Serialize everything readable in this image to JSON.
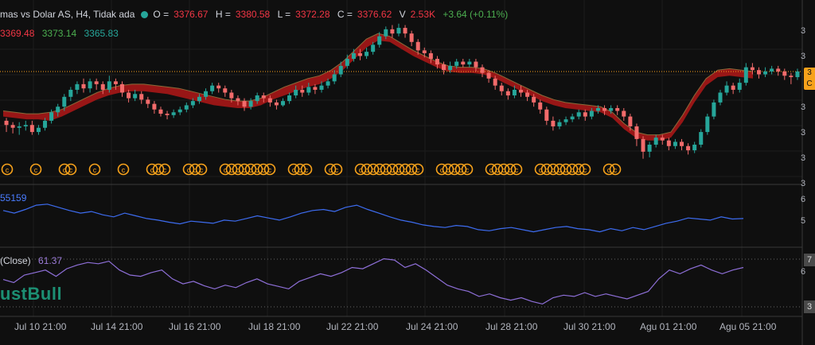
{
  "header": {
    "symbol": "mas vs Dolar AS, H4, Tidak ada",
    "open_label": "O =",
    "open": "3376.67",
    "high_label": "H =",
    "high": "3380.58",
    "low_label": "L =",
    "low": "3372.28",
    "close_label": "C =",
    "close": "3376.62",
    "vol_label": "V",
    "volume": "2.53K",
    "change": "+3.64 (+0.11%)"
  },
  "indicator1": {
    "v1": "3369.48",
    "v2": "3373.14",
    "v3": "3365.83"
  },
  "volume_pane": {
    "label": "55159"
  },
  "rsi_pane": {
    "label": "(Close)",
    "value": "61.37"
  },
  "watermark": "ustBull",
  "right_axis": {
    "main": [
      "3",
      "3",
      "3",
      "3",
      "3",
      "3"
    ],
    "badge_lines": [
      "3",
      "C"
    ],
    "vol": [
      "6",
      "5"
    ],
    "rsi": [
      "7",
      "6",
      "3"
    ]
  },
  "x_labels": [
    "Jul 10 21:00",
    "Jul 14 21:00",
    "Jul 16 21:00",
    "Jul 18 21:00",
    "Jul 22 21:00",
    "Jul 24 21:00",
    "Jul 28 21:00",
    "Jul 30 21:00",
    "Agu 01 21:00",
    "Agu 05 21:00"
  ],
  "colors": {
    "up": "#26a69a",
    "down": "#f26b6b",
    "band": "#b01818",
    "vol_line": "#3d6cf0",
    "rsi_line": "#8e6fd8",
    "marker": "#f7a21b",
    "price_line": "#f7a21b"
  },
  "chart_data": {
    "type": "candlestick",
    "x": [
      "Jul 10 21:00",
      "Jul 14 21:00",
      "Jul 16 21:00",
      "Jul 18 21:00",
      "Jul 22 21:00",
      "Jul 24 21:00",
      "Jul 28 21:00",
      "Jul 30 21:00",
      "Agu 01 21:00",
      "Agu 05 21:00"
    ],
    "last_close": 3376.62,
    "candles": [
      [
        0.3,
        0.27,
        0.22,
        0.32
      ],
      [
        0.27,
        0.25,
        0.21,
        0.29
      ],
      [
        0.25,
        0.26,
        0.2,
        0.29
      ],
      [
        0.26,
        0.27,
        0.23,
        0.3
      ],
      [
        0.27,
        0.22,
        0.2,
        0.3
      ],
      [
        0.22,
        0.25,
        0.2,
        0.27
      ],
      [
        0.25,
        0.3,
        0.23,
        0.32
      ],
      [
        0.3,
        0.36,
        0.28,
        0.38
      ],
      [
        0.36,
        0.4,
        0.33,
        0.42
      ],
      [
        0.4,
        0.47,
        0.37,
        0.49
      ],
      [
        0.47,
        0.52,
        0.44,
        0.54
      ],
      [
        0.52,
        0.56,
        0.49,
        0.58
      ],
      [
        0.56,
        0.53,
        0.5,
        0.6
      ],
      [
        0.53,
        0.58,
        0.5,
        0.6
      ],
      [
        0.58,
        0.56,
        0.52,
        0.6
      ],
      [
        0.56,
        0.52,
        0.49,
        0.58
      ],
      [
        0.52,
        0.58,
        0.5,
        0.62
      ],
      [
        0.58,
        0.56,
        0.52,
        0.6
      ],
      [
        0.56,
        0.5,
        0.47,
        0.58
      ],
      [
        0.5,
        0.46,
        0.43,
        0.52
      ],
      [
        0.46,
        0.49,
        0.44,
        0.52
      ],
      [
        0.49,
        0.45,
        0.42,
        0.51
      ],
      [
        0.45,
        0.42,
        0.39,
        0.47
      ],
      [
        0.42,
        0.38,
        0.35,
        0.44
      ],
      [
        0.38,
        0.35,
        0.33,
        0.4
      ],
      [
        0.35,
        0.34,
        0.31,
        0.37
      ],
      [
        0.34,
        0.36,
        0.32,
        0.38
      ],
      [
        0.36,
        0.38,
        0.34,
        0.4
      ],
      [
        0.38,
        0.41,
        0.36,
        0.43
      ],
      [
        0.41,
        0.44,
        0.39,
        0.46
      ],
      [
        0.44,
        0.47,
        0.42,
        0.49
      ],
      [
        0.47,
        0.51,
        0.45,
        0.53
      ],
      [
        0.51,
        0.55,
        0.49,
        0.57
      ],
      [
        0.55,
        0.53,
        0.5,
        0.57
      ],
      [
        0.53,
        0.5,
        0.47,
        0.55
      ],
      [
        0.5,
        0.46,
        0.43,
        0.52
      ],
      [
        0.46,
        0.44,
        0.41,
        0.48
      ],
      [
        0.44,
        0.4,
        0.37,
        0.46
      ],
      [
        0.4,
        0.44,
        0.38,
        0.46
      ],
      [
        0.44,
        0.48,
        0.42,
        0.5
      ],
      [
        0.48,
        0.46,
        0.43,
        0.5
      ],
      [
        0.46,
        0.43,
        0.4,
        0.48
      ],
      [
        0.43,
        0.41,
        0.38,
        0.45
      ],
      [
        0.41,
        0.44,
        0.4,
        0.46
      ],
      [
        0.44,
        0.48,
        0.42,
        0.5
      ],
      [
        0.48,
        0.52,
        0.46,
        0.55
      ],
      [
        0.52,
        0.5,
        0.47,
        0.55
      ],
      [
        0.5,
        0.54,
        0.48,
        0.57
      ],
      [
        0.54,
        0.52,
        0.49,
        0.56
      ],
      [
        0.52,
        0.55,
        0.5,
        0.58
      ],
      [
        0.55,
        0.58,
        0.53,
        0.6
      ],
      [
        0.58,
        0.63,
        0.56,
        0.66
      ],
      [
        0.63,
        0.69,
        0.61,
        0.72
      ],
      [
        0.69,
        0.74,
        0.67,
        0.77
      ],
      [
        0.74,
        0.78,
        0.72,
        0.81
      ],
      [
        0.78,
        0.76,
        0.73,
        0.81
      ],
      [
        0.76,
        0.79,
        0.74,
        0.82
      ],
      [
        0.79,
        0.84,
        0.77,
        0.86
      ],
      [
        0.84,
        0.9,
        0.82,
        0.93
      ],
      [
        0.9,
        0.95,
        0.88,
        0.97
      ],
      [
        0.95,
        0.92,
        0.89,
        0.98
      ],
      [
        0.92,
        0.96,
        0.9,
        0.99
      ],
      [
        0.96,
        0.92,
        0.89,
        0.98
      ],
      [
        0.92,
        0.86,
        0.83,
        0.94
      ],
      [
        0.86,
        0.8,
        0.77,
        0.88
      ],
      [
        0.8,
        0.78,
        0.75,
        0.82
      ],
      [
        0.78,
        0.74,
        0.71,
        0.8
      ],
      [
        0.74,
        0.7,
        0.67,
        0.76
      ],
      [
        0.7,
        0.66,
        0.63,
        0.72
      ],
      [
        0.66,
        0.69,
        0.64,
        0.72
      ],
      [
        0.69,
        0.72,
        0.67,
        0.74
      ],
      [
        0.72,
        0.7,
        0.68,
        0.74
      ],
      [
        0.7,
        0.72,
        0.68,
        0.74
      ],
      [
        0.72,
        0.68,
        0.65,
        0.74
      ],
      [
        0.68,
        0.64,
        0.61,
        0.7
      ],
      [
        0.64,
        0.6,
        0.57,
        0.66
      ],
      [
        0.6,
        0.55,
        0.52,
        0.62
      ],
      [
        0.55,
        0.51,
        0.48,
        0.57
      ],
      [
        0.51,
        0.48,
        0.45,
        0.53
      ],
      [
        0.48,
        0.52,
        0.46,
        0.55
      ],
      [
        0.52,
        0.5,
        0.47,
        0.55
      ],
      [
        0.5,
        0.47,
        0.44,
        0.52
      ],
      [
        0.47,
        0.43,
        0.4,
        0.49
      ],
      [
        0.43,
        0.38,
        0.35,
        0.45
      ],
      [
        0.38,
        0.3,
        0.27,
        0.4
      ],
      [
        0.3,
        0.26,
        0.23,
        0.33
      ],
      [
        0.26,
        0.29,
        0.24,
        0.31
      ],
      [
        0.29,
        0.31,
        0.27,
        0.33
      ],
      [
        0.31,
        0.33,
        0.29,
        0.35
      ],
      [
        0.33,
        0.36,
        0.31,
        0.38
      ],
      [
        0.36,
        0.33,
        0.3,
        0.38
      ],
      [
        0.33,
        0.37,
        0.31,
        0.39
      ],
      [
        0.37,
        0.39,
        0.35,
        0.41
      ],
      [
        0.39,
        0.37,
        0.34,
        0.41
      ],
      [
        0.37,
        0.39,
        0.35,
        0.41
      ],
      [
        0.39,
        0.37,
        0.34,
        0.41
      ],
      [
        0.37,
        0.33,
        0.3,
        0.39
      ],
      [
        0.33,
        0.26,
        0.23,
        0.35
      ],
      [
        0.26,
        0.17,
        0.12,
        0.28
      ],
      [
        0.17,
        0.08,
        0.03,
        0.19
      ],
      [
        0.08,
        0.13,
        0.04,
        0.15
      ],
      [
        0.13,
        0.18,
        0.11,
        0.2
      ],
      [
        0.18,
        0.16,
        0.13,
        0.2
      ],
      [
        0.16,
        0.12,
        0.09,
        0.18
      ],
      [
        0.12,
        0.15,
        0.1,
        0.17
      ],
      [
        0.15,
        0.12,
        0.09,
        0.17
      ],
      [
        0.12,
        0.09,
        0.06,
        0.14
      ],
      [
        0.09,
        0.13,
        0.07,
        0.15
      ],
      [
        0.13,
        0.22,
        0.11,
        0.24
      ],
      [
        0.22,
        0.33,
        0.2,
        0.35
      ],
      [
        0.33,
        0.43,
        0.31,
        0.45
      ],
      [
        0.43,
        0.5,
        0.41,
        0.52
      ],
      [
        0.5,
        0.55,
        0.48,
        0.58
      ],
      [
        0.55,
        0.52,
        0.49,
        0.57
      ],
      [
        0.52,
        0.57,
        0.5,
        0.6
      ],
      [
        0.57,
        0.68,
        0.55,
        0.71
      ],
      [
        0.68,
        0.66,
        0.63,
        0.71
      ],
      [
        0.66,
        0.63,
        0.6,
        0.68
      ],
      [
        0.63,
        0.65,
        0.61,
        0.68
      ],
      [
        0.65,
        0.67,
        0.63,
        0.69
      ],
      [
        0.67,
        0.65,
        0.62,
        0.69
      ],
      [
        0.65,
        0.62,
        0.59,
        0.67
      ],
      [
        0.62,
        0.61,
        0.56,
        0.64
      ],
      [
        0.61,
        0.65,
        0.59,
        0.67
      ]
    ],
    "band_upper": [
      0.37,
      0.36,
      0.35,
      0.35,
      0.36,
      0.38,
      0.42,
      0.46,
      0.5,
      0.53,
      0.55,
      0.56,
      0.56,
      0.55,
      0.54,
      0.53,
      0.51,
      0.49,
      0.47,
      0.45,
      0.44,
      0.44,
      0.46,
      0.5,
      0.54,
      0.57,
      0.6,
      0.62,
      0.66,
      0.72,
      0.8,
      0.88,
      0.92,
      0.9,
      0.85,
      0.8,
      0.76,
      0.72,
      0.69,
      0.68,
      0.68,
      0.67,
      0.64,
      0.6,
      0.56,
      0.52,
      0.48,
      0.45,
      0.43,
      0.42,
      0.41,
      0.4,
      0.36,
      0.28,
      0.22,
      0.2,
      0.2,
      0.22,
      0.34,
      0.48,
      0.6,
      0.66,
      0.67,
      0.66,
      0.65
    ],
    "band_lower": [
      0.33,
      0.32,
      0.31,
      0.31,
      0.3,
      0.33,
      0.37,
      0.41,
      0.45,
      0.48,
      0.5,
      0.51,
      0.51,
      0.5,
      0.49,
      0.47,
      0.45,
      0.43,
      0.41,
      0.4,
      0.39,
      0.39,
      0.41,
      0.45,
      0.48,
      0.51,
      0.54,
      0.56,
      0.6,
      0.66,
      0.74,
      0.82,
      0.87,
      0.86,
      0.81,
      0.76,
      0.72,
      0.68,
      0.65,
      0.64,
      0.64,
      0.63,
      0.6,
      0.56,
      0.52,
      0.48,
      0.44,
      0.41,
      0.39,
      0.38,
      0.37,
      0.36,
      0.32,
      0.24,
      0.18,
      0.16,
      0.16,
      0.18,
      0.29,
      0.43,
      0.55,
      0.61,
      0.62,
      0.61,
      0.6
    ],
    "markers": [
      {
        "group": "a",
        "count": 1
      },
      {
        "group": "b",
        "count": 1
      },
      {
        "group": "c",
        "count": 2
      },
      {
        "group": "d",
        "count": 1
      },
      {
        "group": "e",
        "count": 1
      },
      {
        "group": "f",
        "count": 3
      },
      {
        "group": "g",
        "count": 3
      },
      {
        "group": "h",
        "count": 8
      },
      {
        "group": "i",
        "count": 3
      },
      {
        "group": "j",
        "count": 2
      },
      {
        "group": "k",
        "count": 10
      },
      {
        "group": "l",
        "count": 5
      },
      {
        "group": "m",
        "count": 5
      },
      {
        "group": "n",
        "count": 8
      },
      {
        "group": "o",
        "count": 2
      }
    ],
    "volume_series": [
      0.6,
      0.55,
      0.62,
      0.7,
      0.72,
      0.66,
      0.6,
      0.55,
      0.58,
      0.52,
      0.48,
      0.55,
      0.5,
      0.45,
      0.42,
      0.38,
      0.35,
      0.4,
      0.38,
      0.36,
      0.42,
      0.4,
      0.45,
      0.5,
      0.46,
      0.42,
      0.48,
      0.55,
      0.6,
      0.62,
      0.58,
      0.66,
      0.7,
      0.62,
      0.55,
      0.48,
      0.42,
      0.38,
      0.33,
      0.3,
      0.28,
      0.32,
      0.3,
      0.24,
      0.22,
      0.26,
      0.28,
      0.24,
      0.2,
      0.24,
      0.28,
      0.3,
      0.26,
      0.24,
      0.2,
      0.26,
      0.22,
      0.28,
      0.24,
      0.3,
      0.36,
      0.4,
      0.46,
      0.44,
      0.42,
      0.48,
      0.44,
      0.45
    ],
    "rsi_series": [
      0.55,
      0.5,
      0.62,
      0.66,
      0.7,
      0.6,
      0.72,
      0.78,
      0.82,
      0.8,
      0.84,
      0.7,
      0.62,
      0.6,
      0.66,
      0.7,
      0.56,
      0.48,
      0.52,
      0.45,
      0.4,
      0.46,
      0.42,
      0.5,
      0.56,
      0.48,
      0.44,
      0.4,
      0.52,
      0.58,
      0.64,
      0.6,
      0.66,
      0.74,
      0.72,
      0.8,
      0.88,
      0.86,
      0.74,
      0.8,
      0.7,
      0.58,
      0.46,
      0.4,
      0.36,
      0.28,
      0.32,
      0.26,
      0.22,
      0.26,
      0.2,
      0.16,
      0.26,
      0.3,
      0.28,
      0.34,
      0.28,
      0.32,
      0.28,
      0.24,
      0.3,
      0.36,
      0.56,
      0.7,
      0.64,
      0.72,
      0.78,
      0.7,
      0.64,
      0.7,
      0.74
    ]
  }
}
